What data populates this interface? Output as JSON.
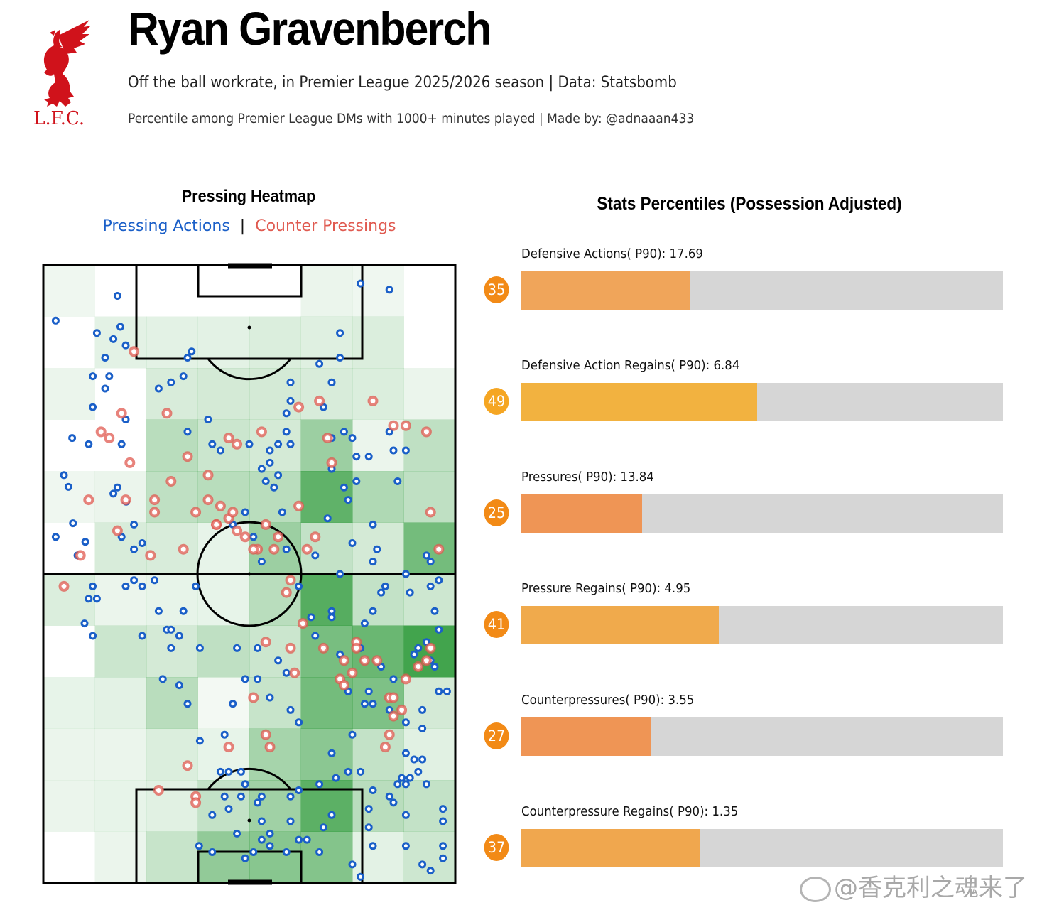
{
  "header": {
    "title": "Ryan Gravenberch",
    "subtitle": "Off the ball workrate, in Premier League 2025/2026 season | Data: Statsbomb",
    "note": "Percentile among Premier League DMs with 1000+ minutes played | Made by: @adnaaan433",
    "logo_text": "L.F.C."
  },
  "colors": {
    "pressing": "#1a5fc8",
    "counter": "#e05a50",
    "heat": "#2e9a3a",
    "track": "#d6d6d6",
    "logo": "#d0121b"
  },
  "chart_data": [
    {
      "type": "heatmap",
      "title": "Pressing Heatmap",
      "legend": [
        "Pressing Actions",
        "Counter Pressings"
      ],
      "grid": [
        [
          0.08,
          0.0,
          0.0,
          0.0,
          0.0,
          0.1,
          0.08,
          0.0
        ],
        [
          0.0,
          0.14,
          0.14,
          0.14,
          0.18,
          0.16,
          0.18,
          0.0
        ],
        [
          0.1,
          0.0,
          0.2,
          0.22,
          0.22,
          0.2,
          0.18,
          0.1
        ],
        [
          0.0,
          0.0,
          0.35,
          0.26,
          0.22,
          0.5,
          0.1,
          0.32
        ],
        [
          0.08,
          0.1,
          0.32,
          0.36,
          0.35,
          0.8,
          0.4,
          0.32
        ],
        [
          0.0,
          0.2,
          0.2,
          0.12,
          0.5,
          0.3,
          0.22,
          0.7
        ],
        [
          0.18,
          0.1,
          0.12,
          0.12,
          0.35,
          0.85,
          0.3,
          0.25
        ],
        [
          0.0,
          0.26,
          0.22,
          0.32,
          0.26,
          0.68,
          0.75,
          0.95
        ],
        [
          0.12,
          0.14,
          0.35,
          0.06,
          0.28,
          0.7,
          0.65,
          0.22
        ],
        [
          0.1,
          0.1,
          0.18,
          0.12,
          0.45,
          0.58,
          0.3,
          0.15
        ],
        [
          0.1,
          0.12,
          0.15,
          0.3,
          0.48,
          0.82,
          0.35,
          0.3
        ],
        [
          0.0,
          0.1,
          0.28,
          0.55,
          0.6,
          0.62,
          0.14,
          0.25
        ]
      ],
      "pressing_actions": [
        [
          6.1,
          35.9
        ],
        [
          7.2,
          41.8
        ],
        [
          10.2,
          44.8
        ],
        [
          8.3,
          47.0
        ],
        [
          37,
          52
        ],
        [
          3,
          44
        ],
        [
          7,
          28
        ],
        [
          11,
          29
        ],
        [
          13,
          11
        ],
        [
          15,
          15
        ],
        [
          17,
          12
        ],
        [
          18.7,
          10
        ],
        [
          12,
          18
        ],
        [
          12,
          23
        ],
        [
          15,
          20
        ],
        [
          16,
          18
        ],
        [
          20,
          25
        ],
        [
          19,
          29
        ],
        [
          18,
          36
        ],
        [
          20.1,
          38.3
        ],
        [
          22,
          42
        ],
        [
          24,
          45
        ],
        [
          22,
          51
        ],
        [
          24,
          52
        ],
        [
          24,
          60
        ],
        [
          28,
          56
        ],
        [
          30,
          59
        ],
        [
          33,
          60
        ],
        [
          33,
          68
        ],
        [
          29,
          67
        ],
        [
          35,
          71
        ],
        [
          38,
          77
        ],
        [
          43,
          82
        ],
        [
          41,
          89
        ],
        [
          37.8,
          94
        ],
        [
          41,
          95
        ],
        [
          44,
          86
        ],
        [
          47,
          92
        ],
        [
          49,
          96
        ],
        [
          51,
          95
        ],
        [
          53,
          90
        ],
        [
          55,
          92
        ],
        [
          52,
          87
        ],
        [
          59,
          95
        ],
        [
          60,
          86
        ],
        [
          62,
          85
        ],
        [
          67,
          84
        ],
        [
          71,
          83
        ],
        [
          74,
          82
        ],
        [
          77,
          82
        ],
        [
          70,
          79
        ],
        [
          75,
          76
        ],
        [
          78,
          71
        ],
        [
          62,
          74
        ],
        [
          74,
          69
        ],
        [
          80,
          85
        ],
        [
          85,
          87
        ],
        [
          88,
          79
        ],
        [
          90,
          80
        ],
        [
          87,
          83
        ],
        [
          92,
          75
        ],
        [
          94,
          64
        ],
        [
          93,
          61
        ],
        [
          96,
          59
        ],
        [
          95,
          65
        ],
        [
          98,
          69
        ],
        [
          96,
          69
        ],
        [
          92,
          72
        ],
        [
          88,
          74
        ],
        [
          85,
          67
        ],
        [
          84,
          72
        ],
        [
          82,
          65
        ],
        [
          79,
          69
        ],
        [
          80,
          71
        ],
        [
          72,
          63
        ],
        [
          70,
          57
        ],
        [
          66,
          60
        ],
        [
          65,
          57
        ],
        [
          70,
          56
        ],
        [
          72,
          50
        ],
        [
          66,
          47
        ],
        [
          62,
          52
        ],
        [
          59,
          46
        ],
        [
          58,
          40
        ],
        [
          56,
          36
        ],
        [
          54,
          35
        ],
        [
          55,
          32
        ],
        [
          57,
          34
        ],
        [
          49,
          40
        ],
        [
          51,
          44
        ],
        [
          53,
          48
        ],
        [
          46,
          42
        ],
        [
          50,
          29
        ],
        [
          43,
          30
        ],
        [
          41,
          29
        ],
        [
          40,
          25
        ],
        [
          36,
          14
        ],
        [
          31,
          19
        ],
        [
          35,
          15
        ],
        [
          34,
          18
        ],
        [
          28,
          20
        ],
        [
          35,
          27
        ],
        [
          18,
          5
        ],
        [
          20,
          13
        ],
        [
          5,
          34
        ],
        [
          3,
          9
        ],
        [
          17,
          37
        ],
        [
          19,
          44
        ],
        [
          12,
          52
        ],
        [
          11,
          54
        ],
        [
          10,
          58
        ],
        [
          12,
          60
        ],
        [
          13,
          54
        ],
        [
          20,
          52
        ],
        [
          22,
          46
        ],
        [
          27,
          51
        ],
        [
          31,
          59
        ],
        [
          34,
          56
        ],
        [
          31,
          62
        ],
        [
          38,
          62
        ],
        [
          47,
          62
        ],
        [
          52,
          62
        ],
        [
          57,
          64
        ],
        [
          59,
          66
        ],
        [
          60,
          72
        ],
        [
          55,
          70
        ],
        [
          52,
          67
        ],
        [
          49,
          67
        ],
        [
          46,
          71
        ],
        [
          44,
          76
        ],
        [
          45,
          82
        ],
        [
          48,
          82
        ],
        [
          49,
          84
        ],
        [
          48,
          86
        ],
        [
          45,
          88
        ],
        [
          53,
          86
        ],
        [
          53,
          93
        ],
        [
          55,
          94
        ],
        [
          60,
          90
        ],
        [
          62,
          93
        ],
        [
          64,
          93
        ],
        [
          67,
          95
        ],
        [
          68,
          91
        ],
        [
          70,
          89
        ],
        [
          75,
          97
        ],
        [
          77,
          99
        ],
        [
          80,
          94
        ],
        [
          79,
          91
        ],
        [
          79,
          88
        ],
        [
          84,
          86
        ],
        [
          86,
          84
        ],
        [
          88,
          84
        ],
        [
          91,
          82
        ],
        [
          93,
          84
        ],
        [
          97,
          88
        ],
        [
          97,
          90
        ],
        [
          97,
          96
        ],
        [
          97,
          94
        ],
        [
          94,
          98
        ],
        [
          92,
          97
        ],
        [
          88,
          94
        ],
        [
          88,
          89
        ],
        [
          92,
          80
        ],
        [
          89,
          83
        ],
        [
          90,
          63
        ],
        [
          91,
          62
        ],
        [
          96,
          51
        ],
        [
          93,
          47
        ],
        [
          94,
          48
        ],
        [
          94,
          52
        ],
        [
          95,
          56
        ],
        [
          89,
          53
        ],
        [
          88,
          50
        ],
        [
          83,
          52
        ],
        [
          82,
          53
        ],
        [
          80,
          56
        ],
        [
          78,
          58
        ],
        [
          77,
          62
        ],
        [
          78,
          64
        ],
        [
          80,
          48
        ],
        [
          81,
          46
        ],
        [
          80,
          42
        ],
        [
          75,
          45
        ],
        [
          74,
          38
        ],
        [
          73,
          36
        ],
        [
          79,
          31
        ],
        [
          69,
          41
        ],
        [
          70,
          33
        ],
        [
          70,
          28
        ],
        [
          73,
          27
        ],
        [
          75,
          28
        ],
        [
          76,
          31
        ],
        [
          76,
          35
        ],
        [
          72,
          11
        ],
        [
          77,
          3
        ],
        [
          84,
          4
        ],
        [
          86,
          35
        ],
        [
          85,
          30
        ],
        [
          88,
          30
        ],
        [
          84,
          27
        ],
        [
          72,
          15
        ],
        [
          68,
          23
        ],
        [
          70,
          19
        ],
        [
          67,
          16
        ],
        [
          60,
          19
        ],
        [
          60,
          22
        ],
        [
          59,
          24
        ],
        [
          59,
          27
        ],
        [
          60,
          29
        ],
        [
          55,
          30
        ],
        [
          53,
          33
        ],
        [
          57,
          29
        ]
      ],
      "counter_pressings": [
        [
          22,
          14
        ],
        [
          30,
          24
        ],
        [
          19,
          24
        ],
        [
          14,
          27
        ],
        [
          16,
          28
        ],
        [
          21,
          32
        ],
        [
          20,
          38
        ],
        [
          11,
          38
        ],
        [
          18,
          43
        ],
        [
          9,
          47
        ],
        [
          5,
          52
        ],
        [
          27,
          38
        ],
        [
          31,
          35
        ],
        [
          27,
          40
        ],
        [
          26,
          47
        ],
        [
          34,
          46
        ],
        [
          37,
          40
        ],
        [
          40,
          34
        ],
        [
          40,
          38
        ],
        [
          42,
          42
        ],
        [
          35,
          31
        ],
        [
          45,
          28
        ],
        [
          47,
          29
        ],
        [
          53,
          27
        ],
        [
          62,
          23
        ],
        [
          67,
          22
        ],
        [
          69,
          28
        ],
        [
          70,
          32
        ],
        [
          62,
          39
        ],
        [
          64,
          46
        ],
        [
          66,
          44
        ],
        [
          80,
          22
        ],
        [
          85,
          26
        ],
        [
          88,
          26
        ],
        [
          93,
          27
        ],
        [
          94,
          40
        ],
        [
          96,
          46
        ],
        [
          94,
          62
        ],
        [
          93,
          64
        ],
        [
          91,
          65
        ],
        [
          88,
          67
        ],
        [
          84,
          70
        ],
        [
          87,
          72
        ],
        [
          81,
          64
        ],
        [
          78,
          64
        ],
        [
          76,
          61
        ],
        [
          76,
          62
        ],
        [
          73,
          64
        ],
        [
          72,
          67
        ],
        [
          68,
          62
        ],
        [
          63,
          58
        ],
        [
          60,
          51
        ],
        [
          59,
          53
        ],
        [
          56,
          46
        ],
        [
          43,
          39
        ],
        [
          54,
          61
        ],
        [
          61,
          66
        ],
        [
          51,
          70
        ],
        [
          45,
          78
        ],
        [
          35,
          81
        ],
        [
          37,
          86
        ],
        [
          28,
          85
        ],
        [
          37,
          87
        ],
        [
          54,
          76
        ],
        [
          55,
          78
        ],
        [
          60,
          62
        ],
        [
          57,
          44
        ],
        [
          54,
          42
        ],
        [
          52,
          46
        ],
        [
          42,
          42
        ],
        [
          45,
          41
        ],
        [
          46,
          40
        ],
        [
          47,
          43
        ],
        [
          49,
          44
        ],
        [
          51,
          46
        ],
        [
          85,
          70
        ],
        [
          85,
          73
        ],
        [
          84,
          76
        ],
        [
          83,
          78
        ],
        [
          73,
          68
        ],
        [
          75,
          66
        ]
      ]
    },
    {
      "type": "bar",
      "orientation": "horizontal",
      "title": "Stats Percentiles (Possession Adjusted)",
      "xlim": [
        0,
        100
      ],
      "items": [
        {
          "label": "Defensive Actions( P90): 17.69",
          "metric": "Defensive Actions( P90)",
          "value": 17.69,
          "percentile": 35,
          "percentile_text": "35",
          "color": "#f0a55a"
        },
        {
          "label": "Defensive Action Regains( P90): 6.84",
          "metric": "Defensive Action Regains( P90)",
          "value": 6.84,
          "percentile": 49,
          "percentile_text": "49",
          "color": "#f2b240"
        },
        {
          "label": "Pressures( P90): 13.84",
          "metric": "Pressures( P90)",
          "value": 13.84,
          "percentile": 25,
          "percentile_text": "25",
          "color": "#ef9555"
        },
        {
          "label": "Pressure Regains( P90): 4.95",
          "metric": "Pressure Regains( P90)",
          "value": 4.95,
          "percentile": 41,
          "percentile_text": "41",
          "color": "#f0aa4c"
        },
        {
          "label": "Counterpressures( P90): 3.55",
          "metric": "Counterpressures( P90)",
          "value": 3.55,
          "percentile": 27,
          "percentile_text": "27",
          "color": "#ef9555"
        },
        {
          "label": "Counterpressure Regains( P90): 1.35",
          "metric": "Counterpressure Regains( P90)",
          "value": 1.35,
          "percentile": 37,
          "percentile_text": "37",
          "color": "#f0a74e"
        }
      ]
    }
  ],
  "watermark": "@香克利之魂来了"
}
